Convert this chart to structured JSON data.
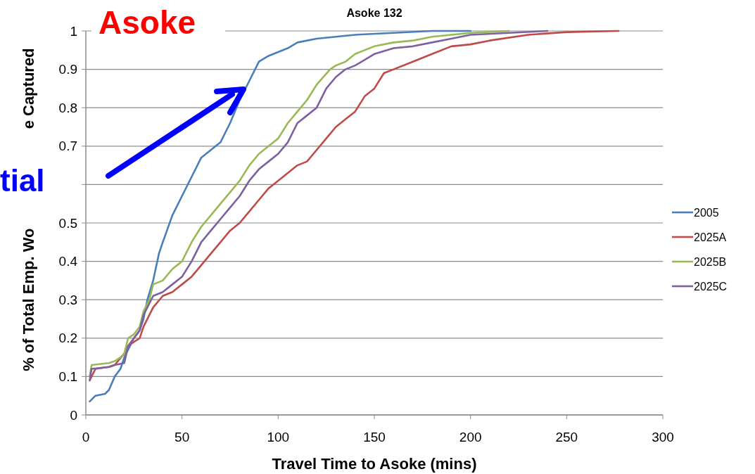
{
  "chart_data": {
    "type": "line",
    "title": "Asoke 132",
    "xlabel": "Travel Time to Asoke (mins)",
    "ylabel": "% of Total Emp. Wo",
    "annotations": [
      "Asoke",
      "tial",
      "e Captured"
    ],
    "xlim": [
      0,
      300
    ],
    "xticks": [
      0,
      50,
      100,
      150,
      200,
      250,
      300
    ],
    "ylim": [
      0,
      1
    ],
    "yticks": [
      0,
      0.1,
      0.2,
      0.3,
      0.4,
      0.5,
      {
        "value": 0.6,
        "label": null
      },
      0.7,
      0.8,
      0.9,
      1
    ],
    "grid": "y",
    "legend": "right",
    "marker": "none",
    "line_style": "solid",
    "series": [
      {
        "name": "2005",
        "color": "#4a7ebb",
        "x": [
          2,
          5,
          10,
          12,
          15,
          18,
          20,
          22,
          25,
          28,
          30,
          32,
          35,
          38,
          40,
          45,
          50,
          55,
          60,
          65,
          70,
          75,
          80,
          85,
          90,
          95,
          100,
          105,
          110,
          120,
          140,
          160,
          180,
          200
        ],
        "values": [
          0.035,
          0.05,
          0.055,
          0.065,
          0.1,
          0.12,
          0.15,
          0.17,
          0.2,
          0.22,
          0.25,
          0.3,
          0.35,
          0.42,
          0.45,
          0.52,
          0.57,
          0.62,
          0.67,
          0.69,
          0.71,
          0.76,
          0.82,
          0.87,
          0.92,
          0.935,
          0.945,
          0.955,
          0.97,
          0.98,
          0.99,
          0.995,
          1,
          1
        ]
      },
      {
        "name": "2025A",
        "color": "#be4b48",
        "x": [
          2,
          5,
          12,
          15,
          20,
          22,
          25,
          28,
          30,
          35,
          40,
          45,
          50,
          55,
          60,
          65,
          70,
          75,
          80,
          85,
          90,
          95,
          100,
          110,
          115,
          120,
          125,
          130,
          135,
          140,
          145,
          150,
          155,
          160,
          170,
          180,
          190,
          200,
          210,
          230,
          250,
          277
        ],
        "values": [
          0.09,
          0.12,
          0.125,
          0.13,
          0.16,
          0.18,
          0.19,
          0.2,
          0.23,
          0.28,
          0.31,
          0.32,
          0.34,
          0.36,
          0.39,
          0.42,
          0.45,
          0.48,
          0.5,
          0.53,
          0.56,
          0.59,
          0.61,
          0.65,
          0.66,
          0.69,
          0.72,
          0.75,
          0.77,
          0.79,
          0.83,
          0.85,
          0.89,
          0.9,
          0.92,
          0.94,
          0.96,
          0.965,
          0.975,
          0.99,
          0.997,
          1
        ]
      },
      {
        "name": "2025B",
        "color": "#98b954",
        "x": [
          2,
          3,
          12,
          15,
          18,
          20,
          22,
          25,
          28,
          30,
          33,
          35,
          40,
          45,
          50,
          55,
          60,
          65,
          70,
          75,
          80,
          85,
          90,
          95,
          100,
          105,
          110,
          115,
          120,
          127,
          130,
          135,
          140,
          150,
          160,
          170,
          180,
          200,
          220
        ],
        "values": [
          0.1,
          0.13,
          0.135,
          0.14,
          0.15,
          0.16,
          0.2,
          0.21,
          0.23,
          0.27,
          0.3,
          0.34,
          0.35,
          0.38,
          0.4,
          0.45,
          0.49,
          0.52,
          0.55,
          0.58,
          0.61,
          0.65,
          0.68,
          0.7,
          0.72,
          0.76,
          0.79,
          0.82,
          0.86,
          0.9,
          0.91,
          0.92,
          0.94,
          0.96,
          0.97,
          0.975,
          0.985,
          0.995,
          1
        ]
      },
      {
        "name": "2025C",
        "color": "#7d60a0",
        "x": [
          2,
          3,
          12,
          15,
          20,
          22,
          25,
          28,
          30,
          33,
          35,
          40,
          45,
          50,
          55,
          60,
          65,
          70,
          75,
          80,
          85,
          90,
          95,
          100,
          105,
          110,
          115,
          120,
          125,
          130,
          135,
          140,
          150,
          160,
          170,
          180,
          190,
          200,
          220,
          240
        ],
        "values": [
          0.09,
          0.12,
          0.125,
          0.13,
          0.135,
          0.18,
          0.2,
          0.22,
          0.26,
          0.29,
          0.31,
          0.32,
          0.34,
          0.36,
          0.4,
          0.45,
          0.48,
          0.51,
          0.54,
          0.57,
          0.61,
          0.64,
          0.66,
          0.68,
          0.71,
          0.76,
          0.78,
          0.8,
          0.85,
          0.88,
          0.9,
          0.91,
          0.94,
          0.955,
          0.96,
          0.97,
          0.98,
          0.99,
          0.995,
          1
        ]
      }
    ]
  }
}
